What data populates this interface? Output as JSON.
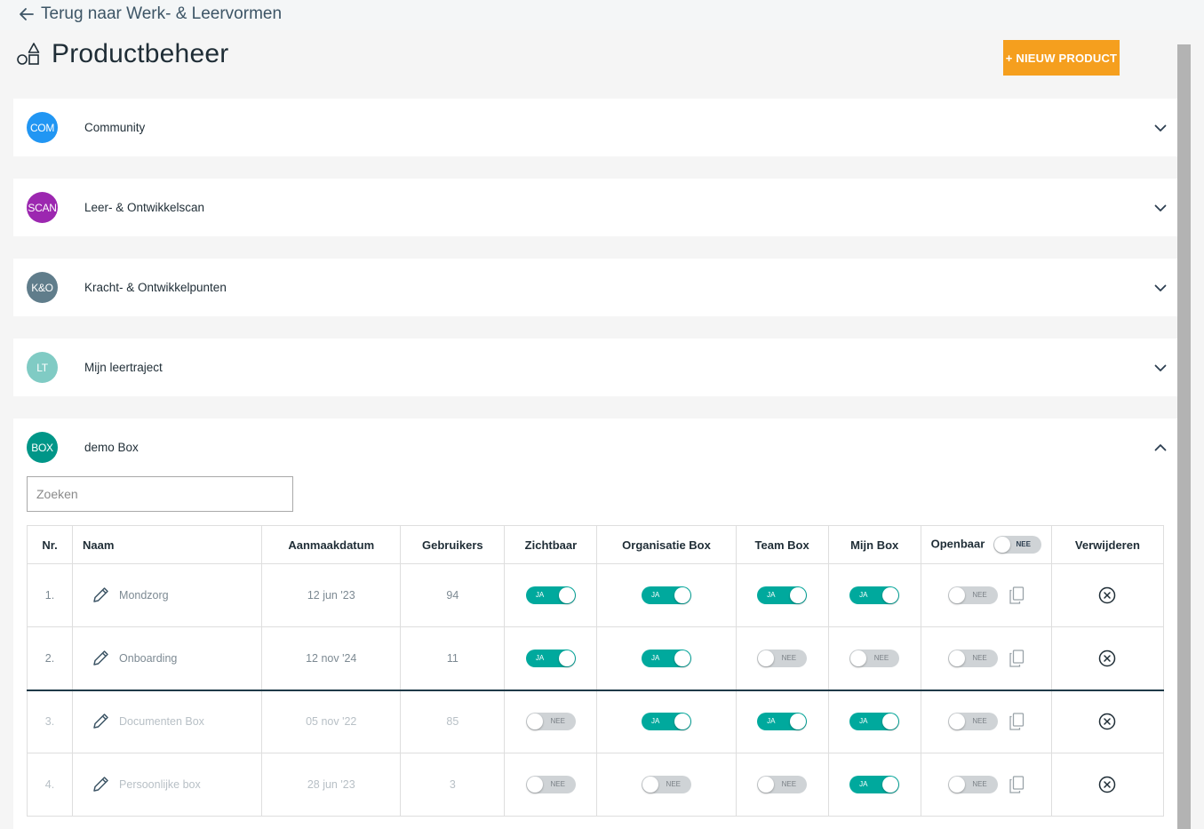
{
  "nav": {
    "back_label": "Terug naar Werk- & Leervormen"
  },
  "page": {
    "title": "Productbeheer",
    "new_button": "+ NIEUW PRODUCT"
  },
  "colors": {
    "accent": "#f59f1e",
    "toggle_on": "#00a99d",
    "toggle_off": "#cfd3d6"
  },
  "groups": [
    {
      "badge": "COM",
      "label": "Community",
      "color": "#2196f3",
      "expanded": false
    },
    {
      "badge": "SCAN",
      "label": "Leer- & Ontwikkelscan",
      "color": "#9c27b0",
      "expanded": false
    },
    {
      "badge": "K&O",
      "label": "Kracht- & Ontwikkelpunten",
      "color": "#607d8b",
      "expanded": false
    },
    {
      "badge": "LT",
      "label": "Mijn leertraject",
      "color": "#80cbc4",
      "expanded": false
    },
    {
      "badge": "BOX",
      "label": "demo Box",
      "color": "#009688",
      "expanded": true
    }
  ],
  "box_table": {
    "search_placeholder": "Zoeken",
    "columns": [
      "Nr.",
      "Naam",
      "Aanmaakdatum",
      "Gebruikers",
      "Zichtbaar",
      "Organisatie Box",
      "Team Box",
      "Mijn Box",
      "Openbaar",
      "Verwijderen"
    ],
    "openbaar_header_toggle": "NEE",
    "toggle_on_label": "JA",
    "toggle_off_label": "NEE",
    "rows": [
      {
        "nr": "1.",
        "name": "Mondzorg",
        "date": "12 jun '23",
        "users": "94",
        "zichtbaar": true,
        "organisatie": true,
        "team": true,
        "mijn": true,
        "openbaar": false,
        "dim": false
      },
      {
        "nr": "2.",
        "name": "Onboarding",
        "date": "12 nov '24",
        "users": "11",
        "zichtbaar": true,
        "organisatie": true,
        "team": false,
        "mijn": false,
        "openbaar": false,
        "dim": false
      },
      {
        "nr": "3.",
        "name": "Documenten Box",
        "date": "05 nov '22",
        "users": "85",
        "zichtbaar": false,
        "organisatie": true,
        "team": true,
        "mijn": true,
        "openbaar": false,
        "dim": true
      },
      {
        "nr": "4.",
        "name": "Persoonlijke box",
        "date": "28 jun '23",
        "users": "3",
        "zichtbaar": false,
        "organisatie": false,
        "team": false,
        "mijn": true,
        "openbaar": false,
        "dim": true
      }
    ]
  }
}
